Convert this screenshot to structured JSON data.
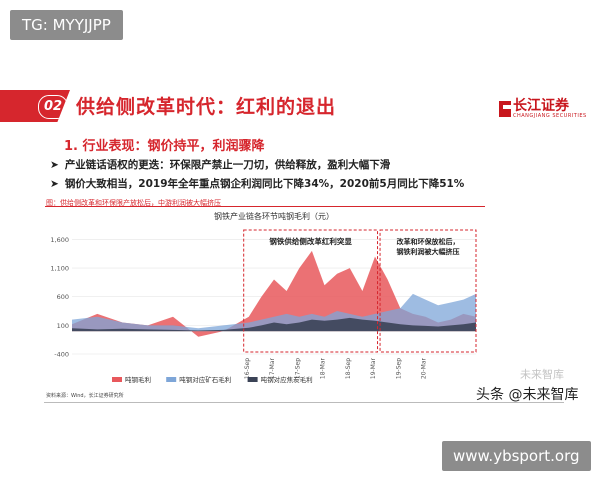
{
  "watermark_top": "TG: MYYJJPP",
  "watermark_site": "www.ybsport.org",
  "watermark_author": "头条 @未来智库",
  "watermark_faint": "未来智库",
  "header": {
    "badge_number": "02",
    "title": "供给侧改革时代：红利的退出",
    "logo_name": "长江证券",
    "logo_sub": "CHANGJIANG SECURITIES"
  },
  "section": {
    "title": "1. 行业表现：钢价持平，利润骤降",
    "bullets": [
      "产业链话语权的更迭：环保限产禁止一刀切，供给释放，盈利大幅下滑",
      "钢价大致相当，2019年全年重点钢企利润同比下降34%，2020前5月同比下降51%"
    ],
    "note": "图：供给侧改革和环保限产放松后，中游利润被大幅挤压"
  },
  "source": "资料来源：Wind，长江证券研究所",
  "colors": {
    "accent": "#d6262d",
    "steel_margin": "#e8585c",
    "ore_margin": "#7ea6d8",
    "coke_margin": "#3b4356"
  },
  "chart_data": {
    "type": "area",
    "title": "钢铁产业链各环节吨钢毛利（元）",
    "ylim": [
      -400,
      1800
    ],
    "yticks": [
      -400,
      100,
      600,
      1100,
      1600
    ],
    "ytick_labels": [
      "-400",
      "100",
      "600",
      "1,100",
      "1,600"
    ],
    "x": [
      2012.5,
      2013,
      2013.5,
      2014,
      2014.5,
      2015,
      2015.5,
      2016,
      2016.25,
      2016.5,
      2016.75,
      2017,
      2017.25,
      2017.5,
      2017.75,
      2018,
      2018.25,
      2018.5,
      2018.75,
      2019,
      2019.25,
      2019.5,
      2019.75,
      2020,
      2020.25,
      2020.5
    ],
    "xtick_labels": [
      "16-Sep",
      "17-Mar",
      "17-Sep",
      "18-Mar",
      "18-Sep",
      "19-Mar",
      "19-Sep",
      "20-Mar"
    ],
    "xtick_at": [
      2016.0,
      2016.5,
      2017.0,
      2017.5,
      2018.0,
      2018.5,
      2019.0,
      2019.5
    ],
    "series": [
      {
        "name": "吨钢毛利",
        "values": [
          120,
          300,
          150,
          100,
          250,
          -100,
          0,
          250,
          600,
          900,
          700,
          1100,
          1400,
          800,
          1000,
          1100,
          700,
          1300,
          900,
          400,
          300,
          250,
          150,
          200,
          300,
          250
        ]
      },
      {
        "name": "吨钢对应矿石毛利",
        "values": [
          200,
          250,
          150,
          100,
          100,
          50,
          100,
          150,
          200,
          250,
          300,
          250,
          300,
          250,
          350,
          300,
          250,
          300,
          350,
          400,
          650,
          550,
          450,
          500,
          550,
          650
        ]
      },
      {
        "name": "吨钢对应焦炭毛利",
        "values": [
          50,
          30,
          40,
          30,
          20,
          10,
          20,
          60,
          100,
          150,
          120,
          150,
          200,
          180,
          200,
          230,
          200,
          180,
          150,
          120,
          100,
          90,
          80,
          100,
          120,
          150
        ]
      }
    ],
    "annotations": [
      {
        "text": "钢铁供给侧改革红利突显"
      },
      {
        "text": "改革和环保放松后，钢铁利润被大幅挤压"
      }
    ],
    "legend": [
      "吨钢毛利",
      "吨钢对应矿石毛利",
      "吨钢对应焦炭毛利"
    ],
    "legend_position": "bottom"
  }
}
